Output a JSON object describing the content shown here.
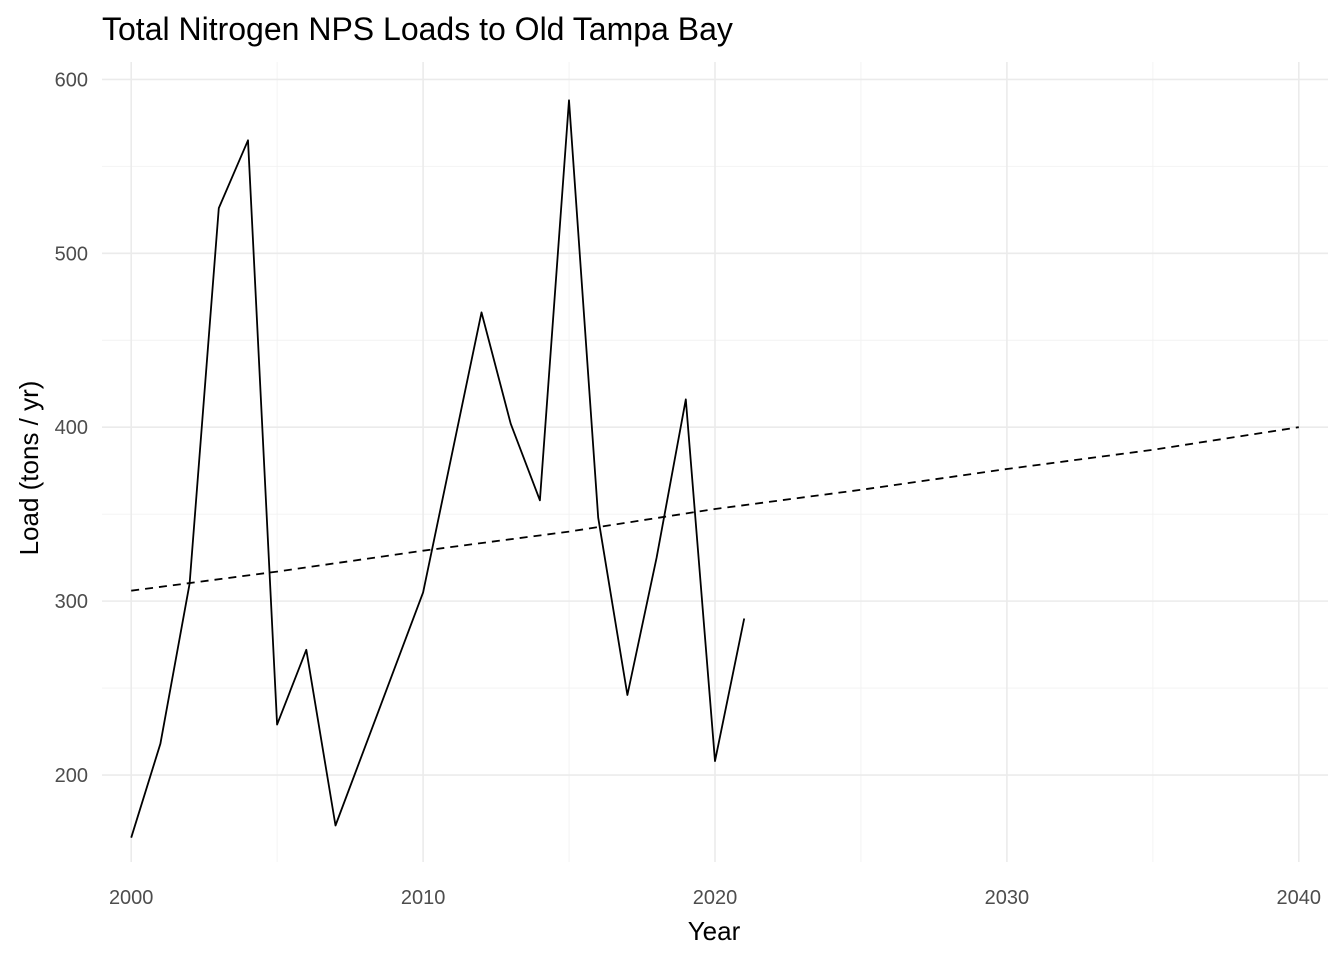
{
  "chart_data": {
    "type": "line",
    "title": "Total Nitrogen NPS Loads to Old Tampa Bay",
    "xlabel": "Year",
    "ylabel": "Load (tons / yr)",
    "xlim": [
      1999,
      2041
    ],
    "ylim": [
      150,
      610
    ],
    "x_ticks": [
      2000,
      2010,
      2020,
      2030,
      2040
    ],
    "y_ticks": [
      200,
      300,
      400,
      500,
      600
    ],
    "x_minor": [
      2005,
      2015,
      2025,
      2035
    ],
    "y_minor": [
      250,
      350,
      450,
      550
    ],
    "grid": true,
    "legend": "none",
    "series": [
      {
        "style": "solid",
        "color": "#000000",
        "x": [
          2000,
          2001,
          2002,
          2003,
          2004,
          2005,
          2006,
          2007,
          2010,
          2012,
          2013,
          2014,
          2015,
          2016,
          2017,
          2018,
          2019,
          2020,
          2021
        ],
        "y": [
          164,
          218,
          310,
          526,
          565,
          229,
          272,
          171,
          305,
          466,
          402,
          358,
          588,
          348,
          246,
          325,
          416,
          208,
          290
        ]
      },
      {
        "style": "dashed",
        "color": "#000000",
        "x": [
          2000,
          2005,
          2010,
          2015,
          2020,
          2025,
          2030,
          2035,
          2040
        ],
        "y": [
          306,
          317,
          329,
          340,
          353,
          364,
          376,
          387,
          400
        ]
      }
    ]
  }
}
